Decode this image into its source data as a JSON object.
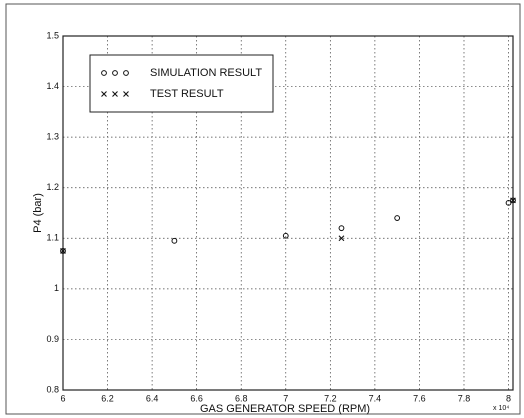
{
  "chart_data": {
    "type": "scatter",
    "xlabel": "GAS GENERATOR SPEED (RPM)",
    "ylabel": "P4 (bar)",
    "x_multiplier": "x 10⁴",
    "xlim": [
      6,
      8.02
    ],
    "xticks": [
      6,
      6.2,
      6.4,
      6.6,
      6.8,
      7,
      7.2,
      7.4,
      7.6,
      7.8,
      8
    ],
    "ylim": [
      0.8,
      1.5
    ],
    "yticks": [
      0.8,
      0.9,
      1,
      1.1,
      1.2,
      1.3,
      1.4,
      1.5
    ],
    "grid": true,
    "legend": "upper left",
    "series": [
      {
        "name": "SIMULATION RESULT",
        "marker": "o",
        "color": "#111111",
        "x": [
          6,
          6.5,
          7,
          7.25,
          7.5,
          8,
          8.02
        ],
        "values": [
          1.075,
          1.095,
          1.105,
          1.12,
          1.14,
          1.17,
          1.175
        ]
      },
      {
        "name": "TEST RESULT",
        "marker": "x",
        "color": "#111111",
        "x": [
          6,
          7.25,
          8.02
        ],
        "values": [
          1.075,
          1.1,
          1.175
        ]
      }
    ]
  }
}
